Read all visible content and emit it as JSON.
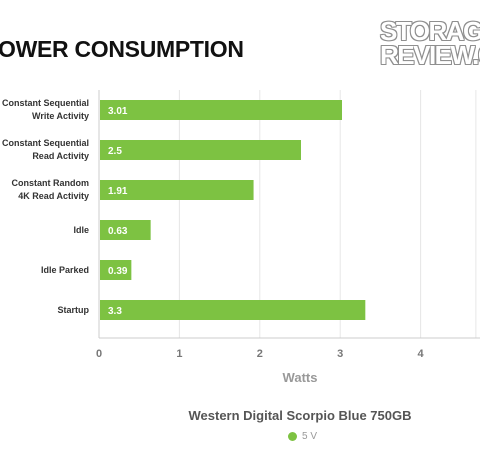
{
  "page": {
    "title": "OWER CONSUMPTION",
    "logo_lines": [
      "STORAGE",
      "REVIEW.CO"
    ]
  },
  "chart_data": {
    "type": "bar",
    "orientation": "horizontal",
    "categories": [
      [
        "Constant Sequential",
        "Write Activity"
      ],
      [
        "Constant Sequential",
        "Read Activity"
      ],
      [
        "Constant Random",
        "4K Read Activity"
      ],
      [
        "Idle"
      ],
      [
        "Idle Parked"
      ],
      [
        "Startup"
      ]
    ],
    "series": [
      {
        "name": "5 V",
        "values": [
          3.01,
          2.5,
          1.91,
          0.63,
          0.39,
          3.3
        ],
        "color": "#7dc242"
      }
    ],
    "data_labels": [
      "3.01",
      "2.5",
      "1.91",
      "0.63",
      "0.39",
      "3.3"
    ],
    "xlabel": "Watts",
    "xticks": [
      0,
      1,
      2,
      3,
      4
    ],
    "xlim": [
      0,
      4.7
    ],
    "grid": true,
    "legend_title": "Western Digital Scorpio Blue 750GB",
    "legend_position": "bottom"
  }
}
